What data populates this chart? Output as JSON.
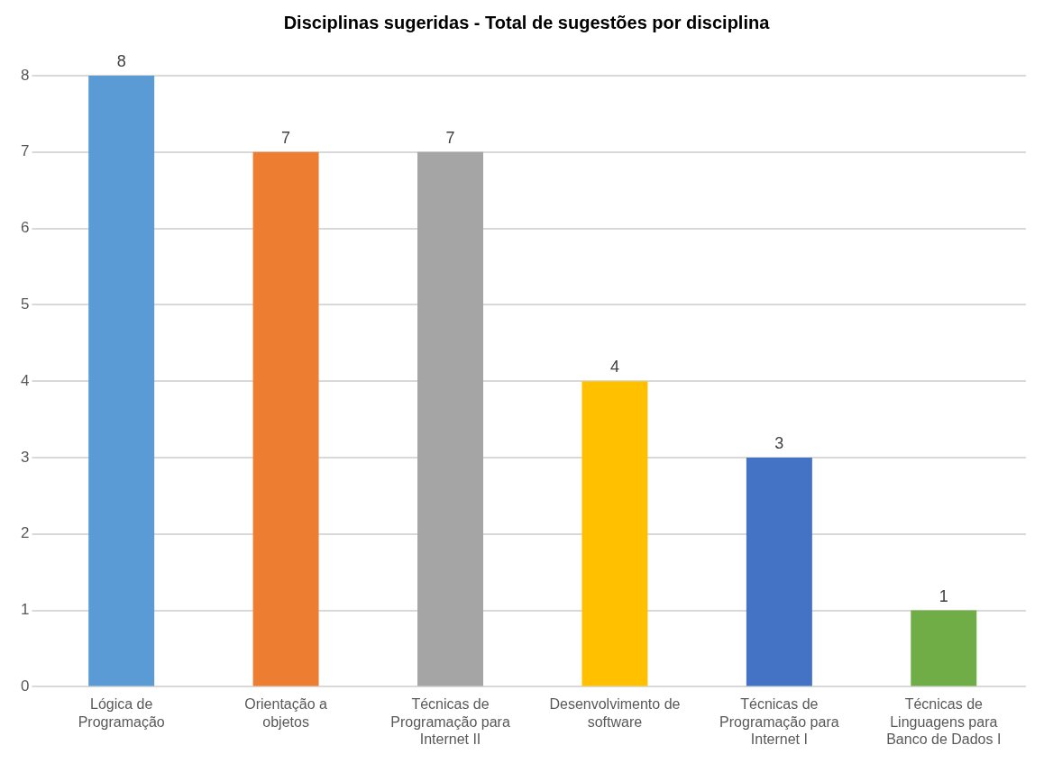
{
  "chart_data": {
    "type": "bar",
    "title": "Disciplinas sugeridas - Total de sugestões por disciplina",
    "categories": [
      "Lógica de Programação",
      "Orientação a objetos",
      "Técnicas de Programação para Internet II",
      "Desenvolvimento de software",
      "Técnicas de Programação para Internet I",
      "Técnicas de Linguagens para Banco de Dados I"
    ],
    "values": [
      8,
      7,
      7,
      4,
      3,
      1
    ],
    "colors": [
      "#5b9bd5",
      "#ed7d31",
      "#a5a5a5",
      "#ffc000",
      "#4472c4",
      "#70ad47"
    ],
    "ylim": [
      0,
      8
    ],
    "yticks": [
      0,
      1,
      2,
      3,
      4,
      5,
      6,
      7,
      8
    ],
    "grid": "y",
    "data_labels": true,
    "legend": false
  }
}
